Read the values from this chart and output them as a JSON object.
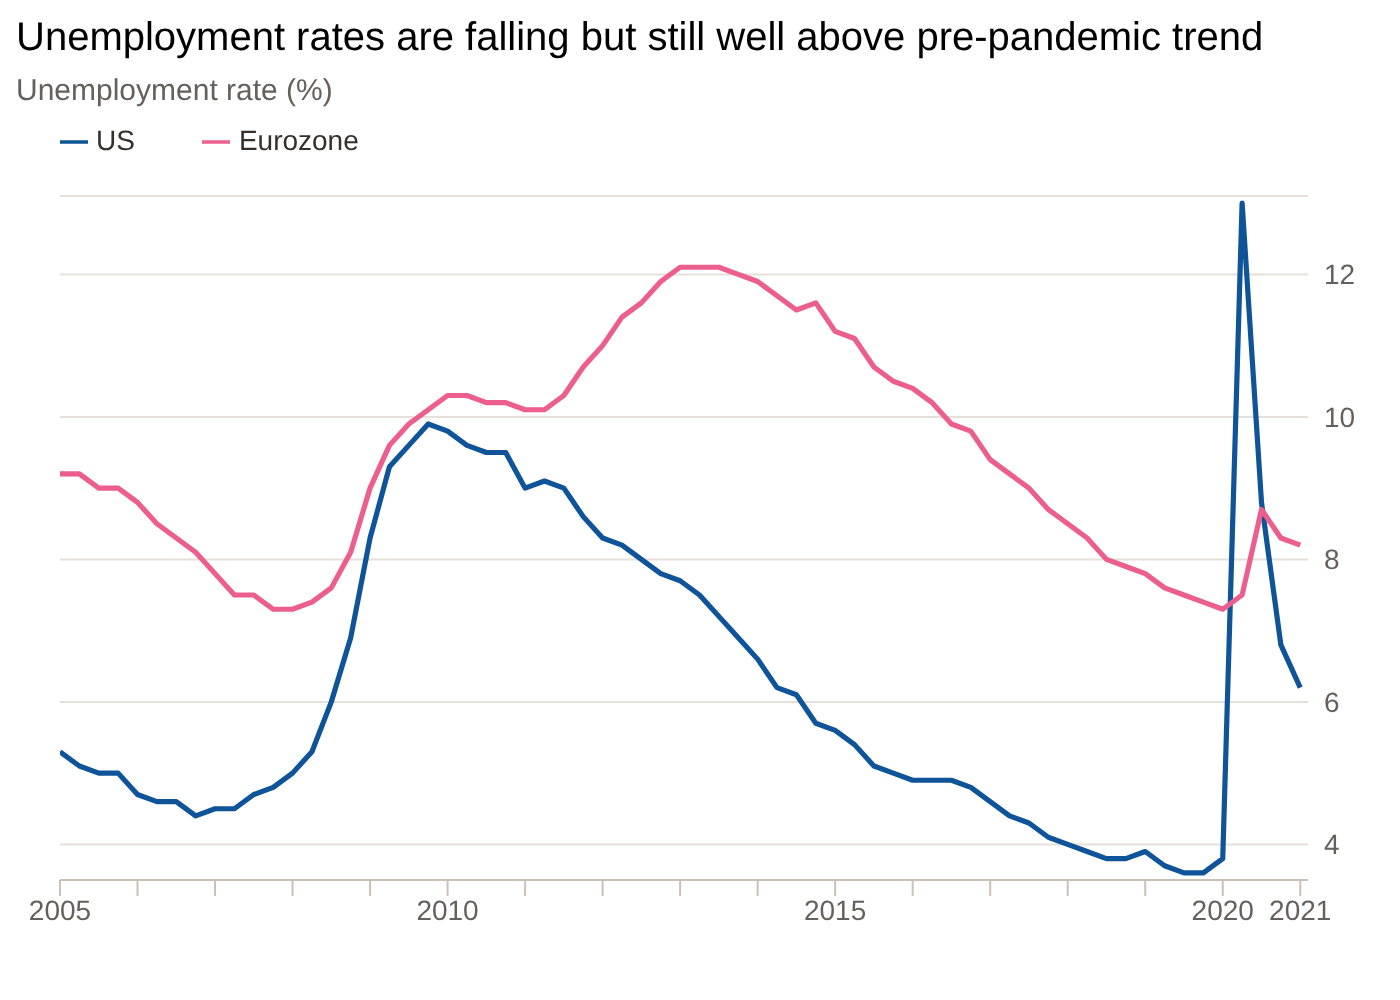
{
  "chart_data": {
    "type": "line",
    "title": "Unemployment rates are falling but still well above pre-pandemic trend",
    "subtitle": "Unemployment rate (%)",
    "x": [
      2005,
      2005.25,
      2005.5,
      2005.75,
      2006,
      2006.25,
      2006.5,
      2006.75,
      2007,
      2007.25,
      2007.5,
      2007.75,
      2008,
      2008.25,
      2008.5,
      2008.75,
      2009,
      2009.25,
      2009.5,
      2009.75,
      2010,
      2010.25,
      2010.5,
      2010.75,
      2011,
      2011.25,
      2011.5,
      2011.75,
      2012,
      2012.25,
      2012.5,
      2012.75,
      2013,
      2013.25,
      2013.5,
      2013.75,
      2014,
      2014.25,
      2014.5,
      2014.75,
      2015,
      2015.25,
      2015.5,
      2015.75,
      2016,
      2016.25,
      2016.5,
      2016.75,
      2017,
      2017.25,
      2017.5,
      2017.75,
      2018,
      2018.25,
      2018.5,
      2018.75,
      2019,
      2019.25,
      2019.5,
      2019.75,
      2020,
      2020.25,
      2020.5,
      2020.75,
      2021
    ],
    "series": [
      {
        "name": "US",
        "color": "#0f5499",
        "values": [
          5.3,
          5.1,
          5.0,
          5.0,
          4.7,
          4.6,
          4.6,
          4.4,
          4.5,
          4.5,
          4.7,
          4.8,
          5.0,
          5.3,
          6.0,
          6.9,
          8.3,
          9.3,
          9.6,
          9.9,
          9.8,
          9.6,
          9.5,
          9.5,
          9.0,
          9.1,
          9.0,
          8.6,
          8.3,
          8.2,
          8.0,
          7.8,
          7.7,
          7.5,
          7.2,
          6.9,
          6.6,
          6.2,
          6.1,
          5.7,
          5.6,
          5.4,
          5.1,
          5.0,
          4.9,
          4.9,
          4.9,
          4.8,
          4.6,
          4.4,
          4.3,
          4.1,
          4.0,
          3.9,
          3.8,
          3.8,
          3.9,
          3.7,
          3.6,
          3.6,
          3.8,
          13.0,
          8.8,
          6.8,
          6.2
        ]
      },
      {
        "name": "Eurozone",
        "color": "#eb5e8d",
        "values": [
          9.2,
          9.2,
          9.0,
          9.0,
          8.8,
          8.5,
          8.3,
          8.1,
          7.8,
          7.5,
          7.5,
          7.3,
          7.3,
          7.4,
          7.6,
          8.1,
          9.0,
          9.6,
          9.9,
          10.1,
          10.3,
          10.3,
          10.2,
          10.2,
          10.1,
          10.1,
          10.3,
          10.7,
          11.0,
          11.4,
          11.6,
          11.9,
          12.1,
          12.1,
          12.1,
          12.0,
          11.9,
          11.7,
          11.5,
          11.6,
          11.2,
          11.1,
          10.7,
          10.5,
          10.4,
          10.2,
          9.9,
          9.8,
          9.4,
          9.2,
          9.0,
          8.7,
          8.5,
          8.3,
          8.0,
          7.9,
          7.8,
          7.6,
          7.5,
          7.4,
          7.3,
          7.5,
          8.7,
          8.3,
          8.2
        ]
      }
    ],
    "xlim": [
      2005,
      2021.1
    ],
    "xticks": [
      2005,
      {
        "value": 2006,
        "label": null
      },
      {
        "value": 2007,
        "label": null
      },
      {
        "value": 2008,
        "label": null
      },
      {
        "value": 2009,
        "label": null
      },
      2010,
      {
        "value": 2011,
        "label": null
      },
      {
        "value": 2012,
        "label": null
      },
      {
        "value": 2013,
        "label": null
      },
      {
        "value": 2014,
        "label": null
      },
      2015,
      {
        "value": 2016,
        "label": null
      },
      {
        "value": 2017,
        "label": null
      },
      {
        "value": 2018,
        "label": null
      },
      {
        "value": 2019,
        "label": null
      },
      2020,
      2021
    ],
    "ylim": [
      3.5,
      13.1
    ],
    "yticks": [
      4,
      6,
      8,
      10,
      12
    ],
    "grid": "y",
    "legend": "top left",
    "marker": "none",
    "line_style": "solid"
  }
}
